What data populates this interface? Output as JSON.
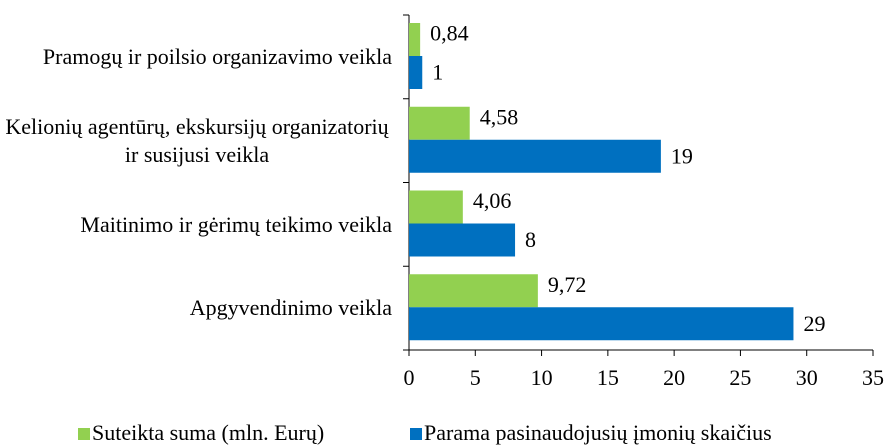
{
  "chart_data": {
    "type": "hbar",
    "categories": [
      "Pramogų ir poilsio organizavimo veikla",
      "Kelionių agentūrų, ekskursijų organizatorių ir susijusi veikla",
      "Maitinimo ir gėrimų teikimo veikla",
      "Apgyvendinimo veikla"
    ],
    "series": [
      {
        "name": "Suteikta suma (mln. Eurų)",
        "color": "#92d050",
        "values": [
          0.84,
          4.58,
          4.06,
          9.72
        ],
        "value_labels": [
          "0,84",
          "4,58",
          "4,06",
          "9,72"
        ]
      },
      {
        "name": "Parama pasinaudojusių įmonių skaičius",
        "color": "#0070c0",
        "values": [
          1,
          19,
          8,
          29
        ]
      }
    ],
    "xlim": [
      0,
      35
    ],
    "xticks": [
      0,
      5,
      10,
      15,
      20,
      25,
      30,
      35
    ],
    "legend": "bottom"
  }
}
